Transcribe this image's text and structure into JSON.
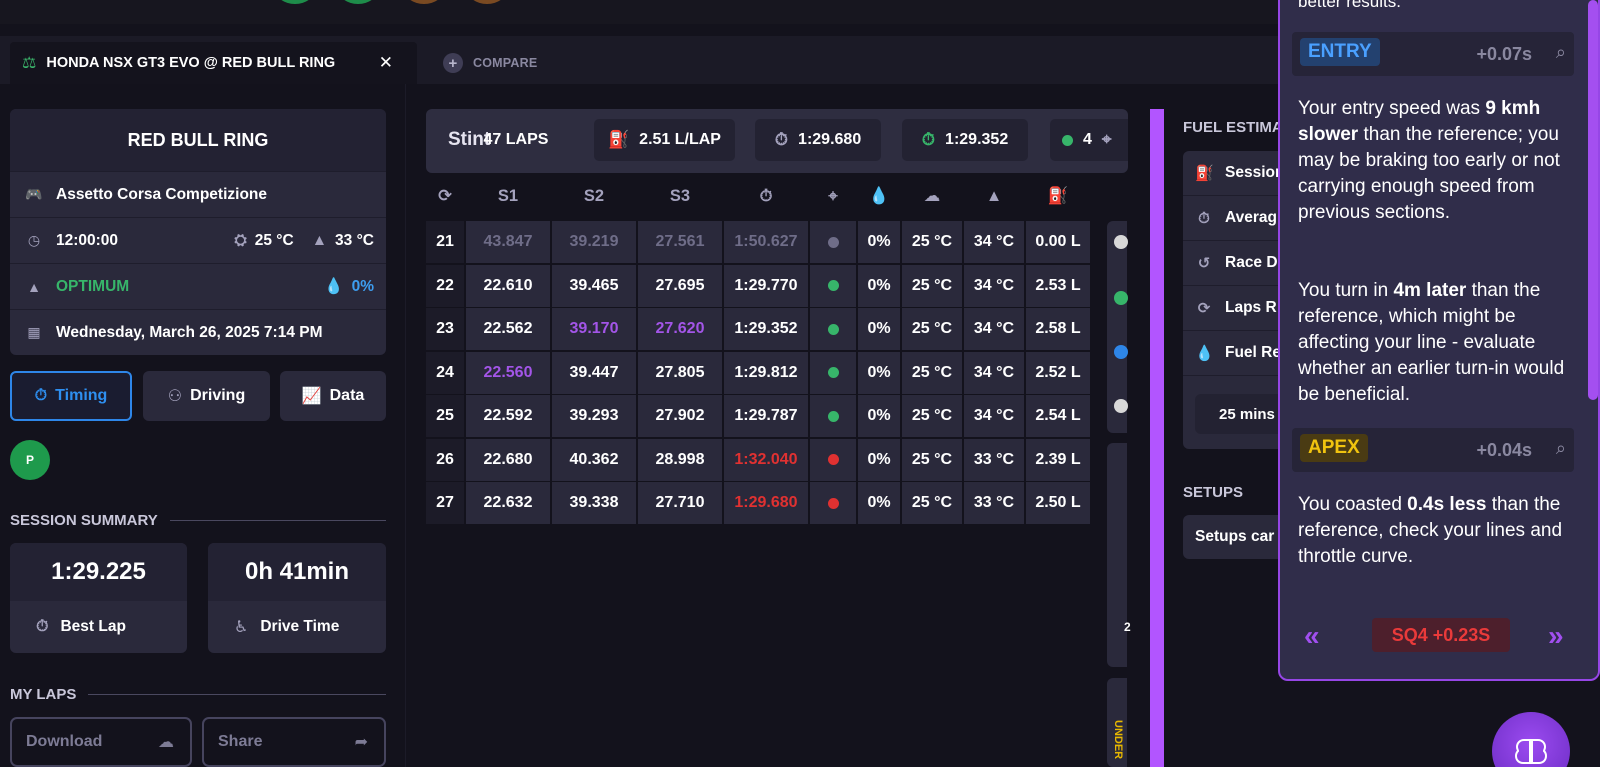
{
  "tabs": {
    "active": "HONDA NSX GT3 EVO @ RED BULL RING",
    "compare": "COMPARE"
  },
  "track": {
    "name": "RED BULL RING",
    "game": "Assetto Corsa Competizione",
    "time": "12:00:00",
    "air_temp": "25 °C",
    "track_temp": "33 °C",
    "grip": "OPTIMUM",
    "rain": "0%",
    "date": "Wednesday, March 26, 2025 7:14 PM"
  },
  "modes": {
    "timing": "Timing",
    "driving": "Driving",
    "data": "Data"
  },
  "position_badge": "P",
  "session_summary": {
    "title": "SESSION SUMMARY",
    "best_lap": "1:29.225",
    "best_lap_label": "Best Lap",
    "drive_time": "0h 41min",
    "drive_time_label": "Drive Time"
  },
  "my_laps": {
    "title": "MY LAPS",
    "download": "Download",
    "share": "Share"
  },
  "stint": {
    "label": "Stint",
    "laps": "47 LAPS",
    "fuel": "2.51 L/LAP",
    "avg_lap": "1:29.680",
    "best_lap": "1:29.352",
    "valid_count": "4"
  },
  "table": {
    "headers": [
      "S1",
      "S2",
      "S3"
    ],
    "rows": [
      {
        "lap": "21",
        "s1": "43.847",
        "s2": "39.219",
        "s3": "27.561",
        "time": "1:50.627",
        "status": "grey",
        "rain": "0%",
        "air": "25 °C",
        "track": "34 °C",
        "fuel": "0.00 L",
        "dim": true
      },
      {
        "lap": "22",
        "s1": "22.610",
        "s2": "39.465",
        "s3": "27.695",
        "time": "1:29.770",
        "status": "green",
        "rain": "0%",
        "air": "25 °C",
        "track": "34 °C",
        "fuel": "2.53 L"
      },
      {
        "lap": "23",
        "s1": "22.562",
        "s2": "39.170",
        "s3": "27.620",
        "time": "1:29.352",
        "status": "green",
        "rain": "0%",
        "air": "25 °C",
        "track": "34 °C",
        "fuel": "2.58 L",
        "purple": [
          "s2",
          "s3"
        ]
      },
      {
        "lap": "24",
        "s1": "22.560",
        "s2": "39.447",
        "s3": "27.805",
        "time": "1:29.812",
        "status": "green",
        "rain": "0%",
        "air": "25 °C",
        "track": "34 °C",
        "fuel": "2.52 L",
        "purple": [
          "s1"
        ]
      },
      {
        "lap": "25",
        "s1": "22.592",
        "s2": "39.293",
        "s3": "27.902",
        "time": "1:29.787",
        "status": "green",
        "rain": "0%",
        "air": "25 °C",
        "track": "34 °C",
        "fuel": "2.54 L"
      },
      {
        "lap": "26",
        "s1": "22.680",
        "s2": "40.362",
        "s3": "28.998",
        "time": "1:32.040",
        "status": "red",
        "rain": "0%",
        "air": "25 °C",
        "track": "33 °C",
        "fuel": "2.39 L",
        "red_time": true
      },
      {
        "lap": "27",
        "s1": "22.632",
        "s2": "39.338",
        "s3": "27.710",
        "time": "1:29.680",
        "status": "red",
        "rain": "0%",
        "air": "25 °C",
        "track": "33 °C",
        "fuel": "2.50 L",
        "red_time": true
      }
    ]
  },
  "side_strip": {
    "under_label": "UNDER",
    "bar_value": "2"
  },
  "fuel_panel": {
    "title": "FUEL ESTIMA",
    "rows": [
      "Session",
      "Averag",
      "Race D",
      "Laps R",
      "Fuel Re"
    ],
    "mins": "25 mins"
  },
  "setups": {
    "title": "SETUPS",
    "card": "Setups car"
  },
  "coach": {
    "intro": "better results.",
    "entry": {
      "tag": "ENTRY",
      "delta": "+0.07s",
      "p1_a": "Your entry speed was ",
      "p1_b": "9 kmh slower",
      "p1_c": " than the reference; you may be braking too early or not carrying enough speed from previous sections.",
      "p2_a": "You turn in ",
      "p2_b": "4m later",
      "p2_c": " than the reference, which might be affecting your line - evaluate whether an earlier turn-in would be beneficial."
    },
    "apex": {
      "tag": "APEX",
      "delta": "+0.04s",
      "p1_a": "You coasted ",
      "p1_b": "0.4s less",
      "p1_c": " than the reference, check your lines and throttle curve."
    },
    "footer": {
      "prev": "«",
      "next": "»",
      "badge": "SQ4 +0.23S"
    }
  },
  "colors": {
    "accent_purple": "#b255ff",
    "best_sector": "#a355e8",
    "invalid": "#e03131",
    "valid": "#37b56a",
    "active_blue": "#2e86e8"
  }
}
